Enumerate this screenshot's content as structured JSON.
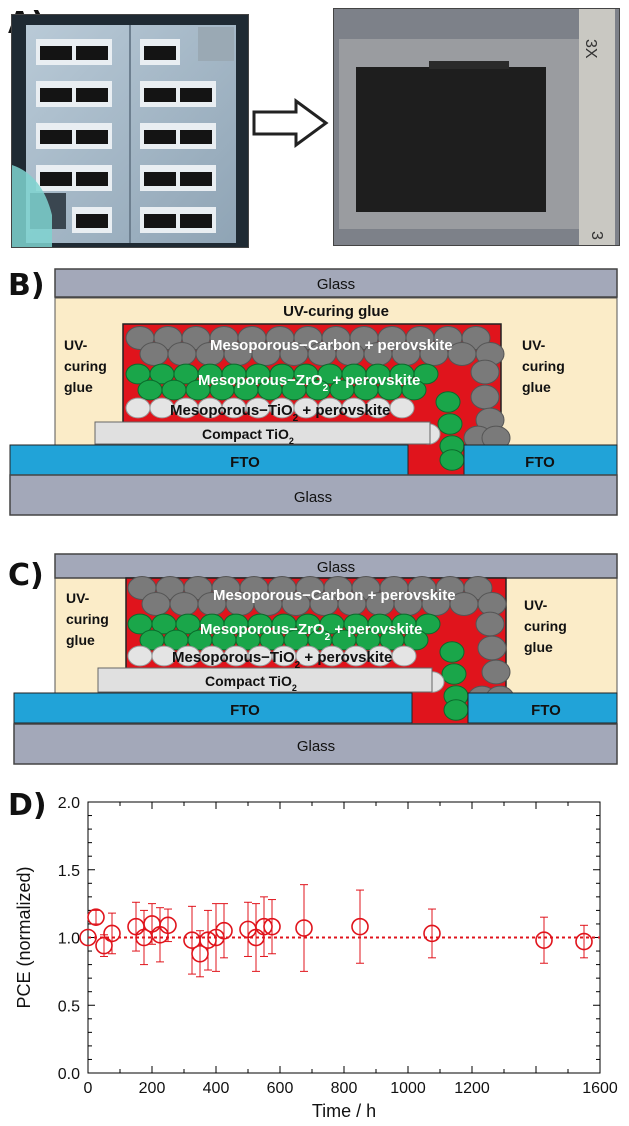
{
  "panels": {
    "a": "A)",
    "b": "B)",
    "c": "C)",
    "d": "D)"
  },
  "photo_b": {
    "label": "3X",
    "mark": "3"
  },
  "diagram_b": {
    "glass_top": "Glass",
    "uv_top": "UV-curing glue",
    "uv_left": [
      "UV-",
      "curing",
      "glue"
    ],
    "uv_right": [
      "UV-",
      "curing",
      "glue"
    ],
    "carbon": "Mesoporous−Carbon + perovskite",
    "zro2": "Mesoporous−ZrO",
    "zro2_sub": "2",
    "zro2_rest": " + perovskite",
    "tio2": "Mesoporous−TiO",
    "tio2_sub": "2",
    "tio2_rest": " + perovskite",
    "compact": "Compact TiO",
    "compact_sub": "2",
    "fto_left": "FTO",
    "fto_right": "FTO",
    "glass_bottom": "Glass"
  },
  "diagram_c": {
    "glass_top": "Glass",
    "uv_left": [
      "UV-",
      "curing",
      "glue"
    ],
    "uv_right": [
      "UV-",
      "curing",
      "glue"
    ],
    "carbon": "Mesoporous−Carbon + perovskite",
    "zro2": "Mesoporous−ZrO",
    "zro2_sub": "2",
    "zro2_rest": " + perovskite",
    "tio2": "Mesoporous−TiO",
    "tio2_sub": "2",
    "tio2_rest": " + perovskite",
    "compact": "Compact TiO",
    "compact_sub": "2",
    "fto_left": "FTO",
    "fto_right": "FTO",
    "glass_bottom": "Glass"
  },
  "colors": {
    "glass": "#a3a8b9",
    "glue": "#fbecc8",
    "fto": "#21a3d8",
    "perovskite": "#e0141c",
    "carbon": "#7a7a7a",
    "zro2": "#1aa64a",
    "tio2": "#e4e4e4",
    "compact": "#e0e0e0",
    "marker": "#e0141c"
  },
  "chart_data": {
    "type": "scatter",
    "xlabel": "Time / h",
    "ylabel": "PCE (normalized)",
    "xlim": [
      0,
      1600
    ],
    "ylim": [
      0.0,
      2.0
    ],
    "xticks": [
      "0",
      "200",
      "400",
      "600",
      "800",
      "1000",
      "1200",
      "1600"
    ],
    "xtick_values": [
      0,
      200,
      400,
      600,
      800,
      1000,
      1200,
      1600
    ],
    "yticks": [
      "0.0",
      "0.5",
      "1.0",
      "1.5",
      "2.0"
    ],
    "ytick_values": [
      0.0,
      0.5,
      1.0,
      1.5,
      2.0
    ],
    "reference_line": 1.0,
    "series": [
      {
        "points": [
          {
            "x": 0,
            "y": 1.0,
            "err": 0.0
          },
          {
            "x": 25,
            "y": 1.15,
            "err": 0.05
          },
          {
            "x": 50,
            "y": 0.94,
            "err": 0.08
          },
          {
            "x": 75,
            "y": 1.03,
            "err": 0.15
          },
          {
            "x": 150,
            "y": 1.08,
            "err": 0.18
          },
          {
            "x": 175,
            "y": 1.0,
            "err": 0.2
          },
          {
            "x": 200,
            "y": 1.1,
            "err": 0.15
          },
          {
            "x": 225,
            "y": 1.02,
            "err": 0.2
          },
          {
            "x": 250,
            "y": 1.09,
            "err": 0.12
          },
          {
            "x": 325,
            "y": 0.98,
            "err": 0.25
          },
          {
            "x": 350,
            "y": 0.88,
            "err": 0.17
          },
          {
            "x": 375,
            "y": 0.98,
            "err": 0.22
          },
          {
            "x": 400,
            "y": 1.0,
            "err": 0.25
          },
          {
            "x": 425,
            "y": 1.05,
            "err": 0.2
          },
          {
            "x": 500,
            "y": 1.06,
            "err": 0.2
          },
          {
            "x": 525,
            "y": 1.0,
            "err": 0.25
          },
          {
            "x": 550,
            "y": 1.08,
            "err": 0.22
          },
          {
            "x": 575,
            "y": 1.08,
            "err": 0.2
          },
          {
            "x": 675,
            "y": 1.07,
            "err": 0.32
          },
          {
            "x": 850,
            "y": 1.08,
            "err": 0.27
          },
          {
            "x": 1075,
            "y": 1.03,
            "err": 0.18
          },
          {
            "x": 1425,
            "y": 0.98,
            "err": 0.17
          },
          {
            "x": 1550,
            "y": 0.97,
            "err": 0.12
          }
        ]
      }
    ]
  }
}
